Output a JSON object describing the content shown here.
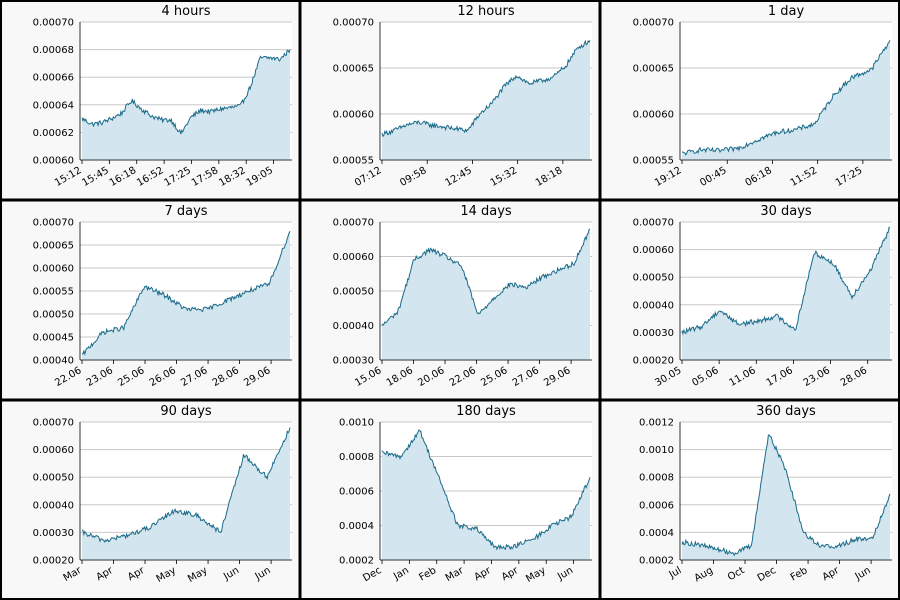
{
  "theme": {
    "line_color": "#1b6b8a",
    "fill_color": "#d3e5ee",
    "grid_color": "#c8c8c8",
    "panel_bg": "#f8f8f8",
    "border_color": "#000000"
  },
  "chart_data": [
    {
      "type": "area",
      "title": "4 hours",
      "ylim": [
        0.0006,
        0.0007
      ],
      "yticks": [
        "0.00060",
        "0.00062",
        "0.00064",
        "0.00066",
        "0.00068",
        "0.00070"
      ],
      "x": [
        "15:12",
        "15:24",
        "15:36",
        "15:45",
        "15:58",
        "16:08",
        "16:18",
        "16:25",
        "16:40",
        "16:52",
        "17:02",
        "17:10",
        "17:25",
        "17:40",
        "17:58",
        "18:10",
        "18:25",
        "18:32",
        "18:40",
        "18:50",
        "19:05",
        "19:15"
      ],
      "values": [
        0.00063,
        0.000626,
        0.000627,
        0.00063,
        0.000634,
        0.000643,
        0.000637,
        0.000632,
        0.000629,
        0.000629,
        0.000619,
        0.000631,
        0.000636,
        0.000635,
        0.000637,
        0.000638,
        0.000639,
        0.000653,
        0.000674,
        0.000674,
        0.000673,
        0.00068
      ],
      "xticks": [
        "15:12",
        "15:45",
        "16:18",
        "16:52",
        "17:25",
        "17:58",
        "18:32",
        "19:05"
      ],
      "grid": true
    },
    {
      "type": "area",
      "title": "12 hours",
      "ylim": [
        0.00055,
        0.0007
      ],
      "yticks": [
        "0.00055",
        "0.00060",
        "0.00065",
        "0.00070"
      ],
      "x": [
        "07:12",
        "08:10",
        "09:10",
        "09:58",
        "10:40",
        "11:30",
        "12:45",
        "13:30",
        "14:10",
        "14:40",
        "15:32",
        "16:10",
        "16:40",
        "17:20",
        "18:18",
        "18:40",
        "19:00",
        "19:10"
      ],
      "values": [
        0.000578,
        0.000582,
        0.000588,
        0.000591,
        0.000588,
        0.000586,
        0.000584,
        0.000582,
        0.0006,
        0.000612,
        0.00063,
        0.000642,
        0.000633,
        0.000636,
        0.00064,
        0.000652,
        0.000672,
        0.00068
      ],
      "xticks": [
        "07:12",
        "09:58",
        "12:45",
        "15:32",
        "18:18"
      ],
      "grid": true
    },
    {
      "type": "area",
      "title": "1 day",
      "ylim": [
        0.00055,
        0.0007
      ],
      "yticks": [
        "0.00055",
        "0.00060",
        "0.00065",
        "0.00070"
      ],
      "x": [
        "19:12",
        "22:00",
        "00:45",
        "03:30",
        "06:18",
        "09:00",
        "11:52",
        "13:30",
        "15:00",
        "17:25",
        "18:30",
        "19:10"
      ],
      "values": [
        0.000557,
        0.000561,
        0.00056,
        0.000563,
        0.000572,
        0.00058,
        0.000583,
        0.000589,
        0.00062,
        0.00064,
        0.000648,
        0.00068
      ],
      "xticks": [
        "19:12",
        "00:45",
        "06:18",
        "11:52",
        "17:25"
      ],
      "grid": true
    },
    {
      "type": "area",
      "title": "7 days",
      "ylim": [
        0.0004,
        0.0007
      ],
      "yticks": [
        "0.00040",
        "0.00045",
        "0.00050",
        "0.00055",
        "0.00060",
        "0.00065",
        "0.00070"
      ],
      "x": [
        "22.06",
        "22.06 12h",
        "23.06",
        "24.06",
        "25.06",
        "25.06 12h",
        "26.06",
        "27.06",
        "28.06",
        "29.06",
        "29.06 12h"
      ],
      "values": [
        0.00041,
        0.00046,
        0.00047,
        0.00056,
        0.00054,
        0.00051,
        0.00051,
        0.00053,
        0.00055,
        0.000565,
        0.00068
      ],
      "xticks": [
        "22.06",
        "23.06",
        "25.06",
        "26.06",
        "27.06",
        "28.06",
        "29.06"
      ],
      "grid": true
    },
    {
      "type": "area",
      "title": "14 days",
      "ylim": [
        0.0003,
        0.0007
      ],
      "yticks": [
        "0.00030",
        "0.00040",
        "0.00050",
        "0.00060",
        "0.00070"
      ],
      "x": [
        "15.06",
        "17.06",
        "18.06",
        "19.06",
        "20.06",
        "21.06",
        "22.06",
        "23.06",
        "25.06",
        "26.06",
        "27.06",
        "28.06",
        "29.06",
        "30.06"
      ],
      "values": [
        0.0004,
        0.00044,
        0.00059,
        0.00062,
        0.0006,
        0.00057,
        0.00043,
        0.00048,
        0.00052,
        0.00051,
        0.00054,
        0.00056,
        0.00058,
        0.00068
      ],
      "xticks": [
        "15.06",
        "18.06",
        "20.06",
        "22.06",
        "25.06",
        "27.06",
        "29.06"
      ],
      "grid": true
    },
    {
      "type": "area",
      "title": "30 days",
      "ylim": [
        0.0002,
        0.0007
      ],
      "yticks": [
        "0.00020",
        "0.00030",
        "0.00040",
        "0.00050",
        "0.00060",
        "0.00070"
      ],
      "x": [
        "30.05",
        "02.06",
        "05.06",
        "08.06",
        "11.06",
        "14.06",
        "17.06",
        "20.06",
        "23.06",
        "26.06",
        "28.06",
        "30.06"
      ],
      "values": [
        0.0003,
        0.00032,
        0.00038,
        0.00033,
        0.00034,
        0.00036,
        0.00031,
        0.00059,
        0.00055,
        0.00043,
        0.00053,
        0.00068
      ],
      "xticks": [
        "30.05",
        "05.06",
        "11.06",
        "17.06",
        "23.06",
        "28.06"
      ],
      "grid": true
    },
    {
      "type": "area",
      "title": "90 days",
      "ylim": [
        0.0002,
        0.0007
      ],
      "yticks": [
        "0.00020",
        "0.00030",
        "0.00040",
        "0.00050",
        "0.00060",
        "0.00070"
      ],
      "x": [
        "Mar",
        "Apr",
        "Apr 2",
        "May",
        "May 2",
        "May 3",
        "Jun",
        "Jun 2",
        "Jun 3",
        "Jun 4"
      ],
      "values": [
        0.0003,
        0.00027,
        0.00029,
        0.00032,
        0.00038,
        0.00036,
        0.0003,
        0.00058,
        0.0005,
        0.00068
      ],
      "xticks": [
        "Mar",
        "Apr",
        "Apr",
        "May",
        "May",
        "Jun",
        "Jun"
      ],
      "grid": true
    },
    {
      "type": "area",
      "title": "180 days",
      "ylim": [
        0.0002,
        0.001
      ],
      "yticks": [
        "0.0002",
        "0.0004",
        "0.0006",
        "0.0008",
        "0.0010"
      ],
      "x": [
        "Dec",
        "Dec 2",
        "Jan",
        "Jan 2",
        "Feb",
        "Mar",
        "Apr",
        "Apr 2",
        "May",
        "Jun",
        "Jun 2",
        "Jun 3"
      ],
      "values": [
        0.00082,
        0.0008,
        0.00095,
        0.00068,
        0.0004,
        0.00038,
        0.00027,
        0.00028,
        0.00032,
        0.0004,
        0.00045,
        0.00068
      ],
      "xticks": [
        "Dec",
        "Jan",
        "Feb",
        "Mar",
        "Apr",
        "Apr",
        "May",
        "Jun"
      ],
      "grid": true
    },
    {
      "type": "area",
      "title": "360 days",
      "ylim": [
        0.0002,
        0.0012
      ],
      "yticks": [
        "0.0002",
        "0.0004",
        "0.0006",
        "0.0008",
        "0.0010",
        "0.0012"
      ],
      "x": [
        "Jul",
        "Aug",
        "Sep",
        "Oct",
        "Nov",
        "Dec",
        "Jan",
        "Feb",
        "Mar",
        "Apr",
        "May",
        "Jun",
        "Jul"
      ],
      "values": [
        0.00033,
        0.00031,
        0.00028,
        0.00025,
        0.0003,
        0.00112,
        0.00085,
        0.0004,
        0.0003,
        0.0003,
        0.00035,
        0.00036,
        0.00068
      ],
      "xticks": [
        "Jul",
        "Aug",
        "Oct",
        "Dec",
        "Feb",
        "Apr",
        "Jun"
      ],
      "grid": true
    }
  ]
}
